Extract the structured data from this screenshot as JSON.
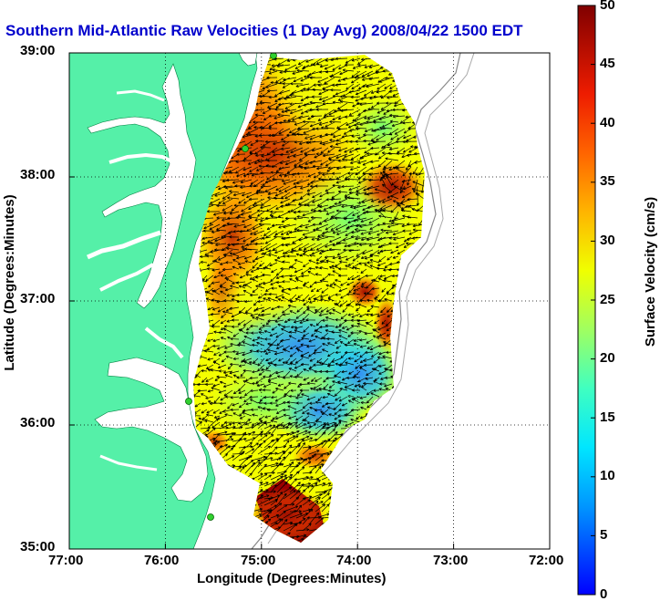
{
  "title": "Southern Mid-Atlantic Raw Velocities (1 Day Avg) 2008/04/22 1500 EDT",
  "x_axis": {
    "label": "Longitude (Degrees:Minutes)",
    "ticks": [
      "77:00",
      "76:00",
      "75:00",
      "74:00",
      "73:00",
      "72:00"
    ]
  },
  "y_axis": {
    "label": "Latitude (Degrees:Minutes)",
    "ticks": [
      "39:00",
      "38:00",
      "37:00",
      "36:00",
      "35:00"
    ]
  },
  "colorbar": {
    "label": "Surface Velocity (cm/s)",
    "ticks": [
      "50",
      "45",
      "40",
      "35",
      "30",
      "25",
      "20",
      "15",
      "10",
      "5",
      "0"
    ],
    "range": [
      0,
      50
    ],
    "colormap": "jet"
  },
  "map": {
    "lon_range": [
      -77,
      -72
    ],
    "lat_range": [
      35,
      39
    ],
    "land_color": "#55f0a8",
    "grid": "dotted",
    "vectors": "black arrows"
  }
}
